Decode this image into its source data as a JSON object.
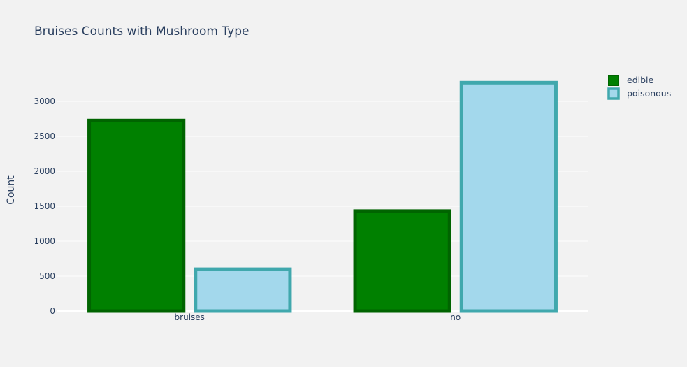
{
  "chart_data": {
    "type": "bar",
    "title": "Bruises Counts with Mushroom Type",
    "xlabel": "",
    "ylabel": "Count",
    "categories": [
      "bruises",
      "no"
    ],
    "series": [
      {
        "name": "edible",
        "values": [
          2752,
          1456
        ],
        "fill": "#008000",
        "stroke": "#006400"
      },
      {
        "name": "poisonous",
        "values": [
          624,
          3292
        ],
        "fill": "#a3d8ec",
        "stroke": "#40a8ad"
      }
    ],
    "ylim": [
      0,
      3470
    ],
    "yticks": [
      0,
      500,
      1000,
      1500,
      2000,
      2500,
      3000
    ],
    "grid": true,
    "legend_position": "top-right"
  }
}
